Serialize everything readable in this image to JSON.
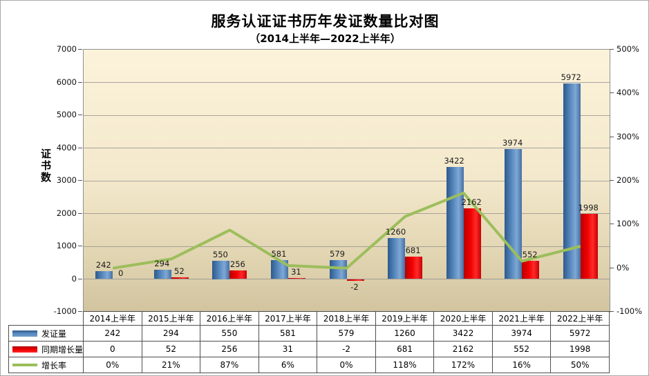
{
  "title": "服务认证证书历年发证数量比对图",
  "subtitle": "（2014上半年—2022上半年）",
  "left_axis": {
    "label": "证书数",
    "min": -1000,
    "max": 7000,
    "step": 1000,
    "ticks": [
      "7000",
      "6000",
      "5000",
      "4000",
      "3000",
      "2000",
      "1000",
      "0",
      "-1000"
    ]
  },
  "right_axis": {
    "min": -100,
    "max": 500,
    "step": 100,
    "ticks": [
      "500%",
      "400%",
      "300%",
      "200%",
      "100%",
      "0%",
      "-100%"
    ]
  },
  "chart_data": {
    "type": "bar+line",
    "title": "服务认证证书历年发证数量比对图",
    "subtitle": "（2014上半年—2022上半年）",
    "ylabel_left": "证书数",
    "ylim_left": [
      -1000,
      7000
    ],
    "ylim_right_pct": [
      -100,
      500
    ],
    "grid": true,
    "legend_position": "table-left",
    "categories": [
      "2014上半年",
      "2015上半年",
      "2016上半年",
      "2017上半年",
      "2018上半年",
      "2019上半年",
      "2020上半年",
      "2021上半年",
      "2022上半年"
    ],
    "series": [
      {
        "name": "发证量",
        "type": "bar",
        "axis": "left",
        "color_key": "blue",
        "values": [
          242,
          294,
          550,
          581,
          579,
          1260,
          3422,
          3974,
          5972
        ],
        "display": [
          "242",
          "294",
          "550",
          "581",
          "579",
          "1260",
          "3422",
          "3974",
          "5972"
        ]
      },
      {
        "name": "同期增长量",
        "type": "bar",
        "axis": "left",
        "color_key": "red",
        "values": [
          0,
          52,
          256,
          31,
          -2,
          681,
          2162,
          552,
          1998
        ],
        "display": [
          "0",
          "52",
          "256",
          "31",
          "-2",
          "681",
          "2162",
          "552",
          "1998"
        ]
      },
      {
        "name": "增长率",
        "type": "line",
        "axis": "right",
        "color_key": "green",
        "values": [
          0,
          21,
          87,
          6,
          0,
          118,
          172,
          16,
          50
        ],
        "display": [
          "0%",
          "21%",
          "87%",
          "6%",
          "0%",
          "118%",
          "172%",
          "16%",
          "50%"
        ]
      }
    ]
  },
  "colors": {
    "blue": "#4F81BD",
    "red": "#E80000",
    "green": "#9CBE5C",
    "plot_bg_top": "#FCF3DB",
    "plot_bg_bottom": "#D1C49F",
    "gridline": "#8C8C8C",
    "table_border": "#4D4D4D"
  }
}
